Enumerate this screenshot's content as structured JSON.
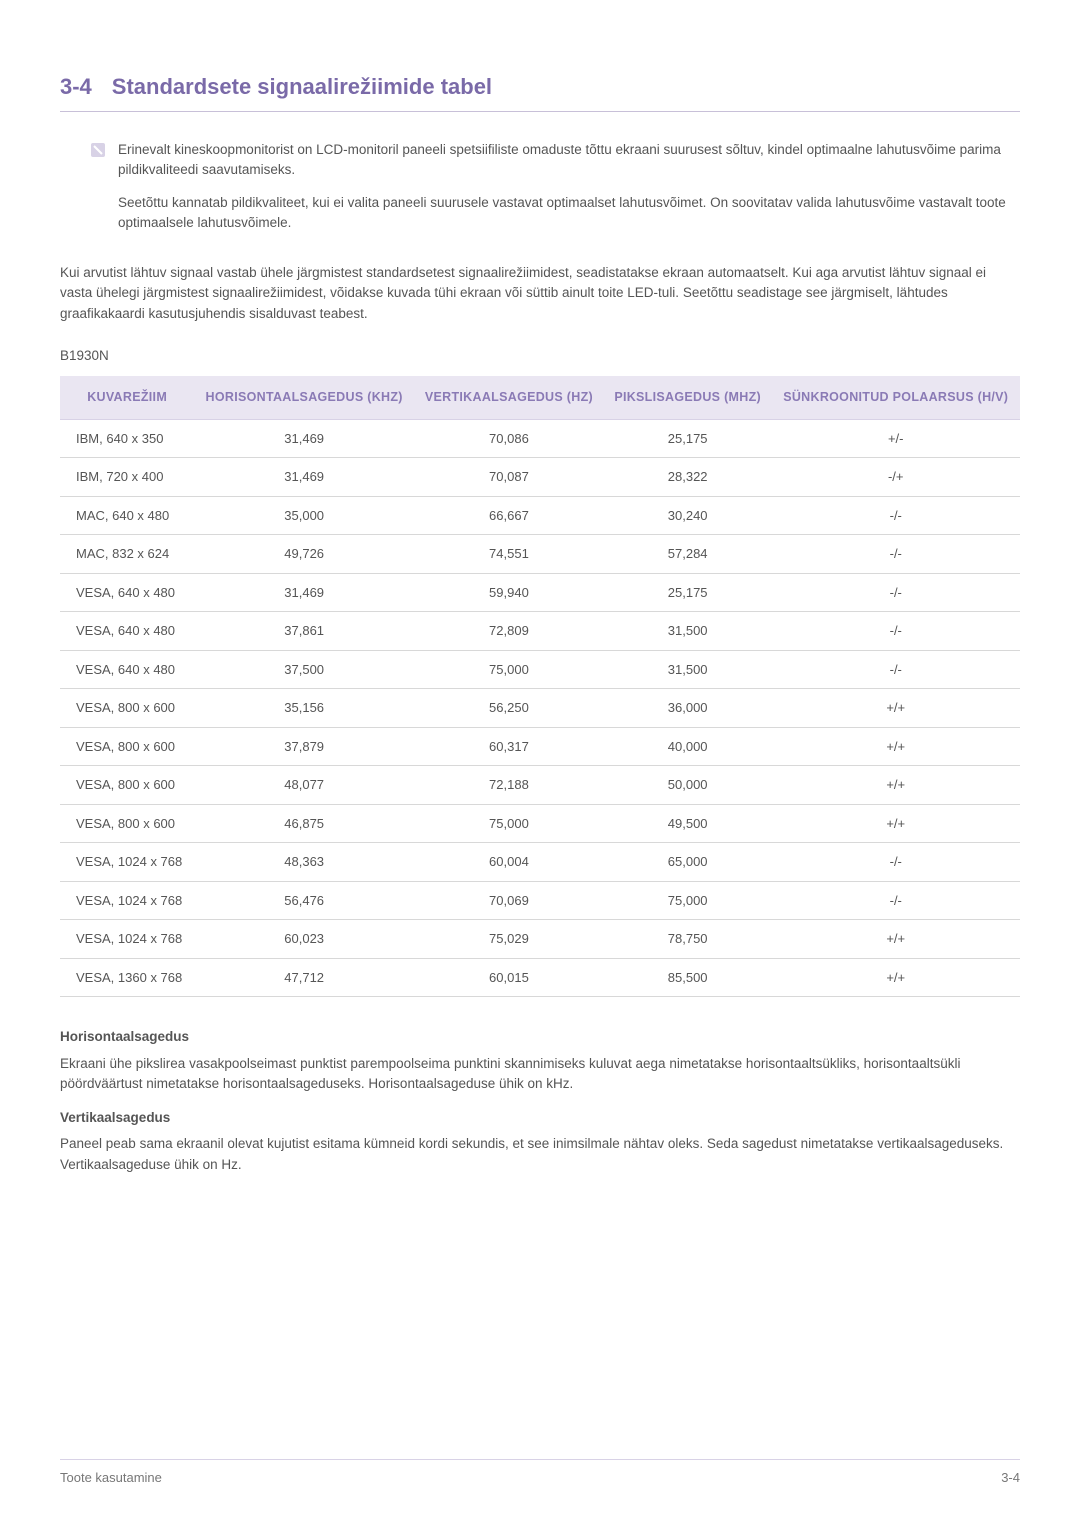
{
  "heading": {
    "number": "3-4",
    "title": "Standardsete signaalirežiimide tabel"
  },
  "note": {
    "para1": "Erinevalt kineskoopmonitorist on LCD-monitoril paneeli spetsiifiliste omaduste tõttu ekraani suurusest sõltuv, kindel optimaalne lahutusvõime parima pildikvaliteedi saavutamiseks.",
    "para2": "Seetõttu kannatab pildikvaliteet, kui ei valita paneeli suurusele vastavat optimaalset lahutusvõimet. On soovitatav valida lahutusvõime vastavalt toote optimaalsele lahutusvõimele."
  },
  "body_para": "Kui arvutist lähtuv signaal vastab ühele järgmistest standardsetest signaalirežiimidest, seadistatakse ekraan automaatselt. Kui aga arvutist lähtuv signaal ei vasta ühelegi järgmistest signaalirežiimidest, võidakse kuvada tühi ekraan või süttib ainult toite LED-tuli. Seetõttu seadistage see järgmiselt, lähtudes graafikakaardi kasutusjuhendis sisalduvast teabest.",
  "model": "B1930N",
  "table": {
    "columns": [
      "KUVAREŽIIM",
      "HORISONTAALSAGEDUS (KHZ)",
      "VERTIKAALSAGEDUS (HZ)",
      "PIKSLISAGEDUS (MHZ)",
      "SÜNKROONITUD POLAARSUS (H/V)"
    ],
    "rows": [
      [
        "IBM, 640 x 350",
        "31,469",
        "70,086",
        "25,175",
        "+/-"
      ],
      [
        "IBM, 720 x 400",
        "31,469",
        "70,087",
        "28,322",
        "-/+"
      ],
      [
        "MAC, 640 x 480",
        "35,000",
        "66,667",
        "30,240",
        "-/-"
      ],
      [
        "MAC, 832 x 624",
        "49,726",
        "74,551",
        "57,284",
        "-/-"
      ],
      [
        "VESA, 640 x 480",
        "31,469",
        "59,940",
        "25,175",
        "-/-"
      ],
      [
        "VESA, 640 x 480",
        "37,861",
        "72,809",
        "31,500",
        "-/-"
      ],
      [
        "VESA, 640 x 480",
        "37,500",
        "75,000",
        "31,500",
        "-/-"
      ],
      [
        "VESA, 800 x 600",
        "35,156",
        "56,250",
        "36,000",
        "+/+"
      ],
      [
        "VESA, 800 x 600",
        "37,879",
        "60,317",
        "40,000",
        "+/+"
      ],
      [
        "VESA, 800 x 600",
        "48,077",
        "72,188",
        "50,000",
        "+/+"
      ],
      [
        "VESA, 800 x 600",
        "46,875",
        "75,000",
        "49,500",
        "+/+"
      ],
      [
        "VESA, 1024 x 768",
        "48,363",
        "60,004",
        "65,000",
        "-/-"
      ],
      [
        "VESA, 1024 x 768",
        "56,476",
        "70,069",
        "75,000",
        "-/-"
      ],
      [
        "VESA, 1024 x 768",
        "60,023",
        "75,029",
        "78,750",
        "+/+"
      ],
      [
        "VESA, 1360 x 768",
        "47,712",
        "60,015",
        "85,500",
        "+/+"
      ]
    ]
  },
  "definitions": {
    "h_title": "Horisontaalsagedus",
    "h_body": "Ekraani ühe pikslirea vasakpoolseimast punktist parempoolseima punktini skannimiseks kuluvat aega nimetatakse horisontaaltsükliks, horisontaaltsükli pöördväärtust nimetatakse horisontaalsageduseks. Horisontaalsageduse ühik on kHz.",
    "v_title": "Vertikaalsagedus",
    "v_body": "Paneel peab sama ekraanil olevat kujutist esitama kümneid kordi sekundis, et see inimsilmale nähtav oleks. Seda sagedust nimetatakse vertikaalsageduseks. Vertikaalsageduse ühik on Hz."
  },
  "footer": {
    "left": "Toote kasutamine",
    "right": "3-4"
  },
  "colors": {
    "accent": "#7a6aa8",
    "header_bg": "#eae6f2",
    "header_text": "#8a7ab5",
    "rule": "#d8d2e6",
    "body_text": "#555555"
  }
}
